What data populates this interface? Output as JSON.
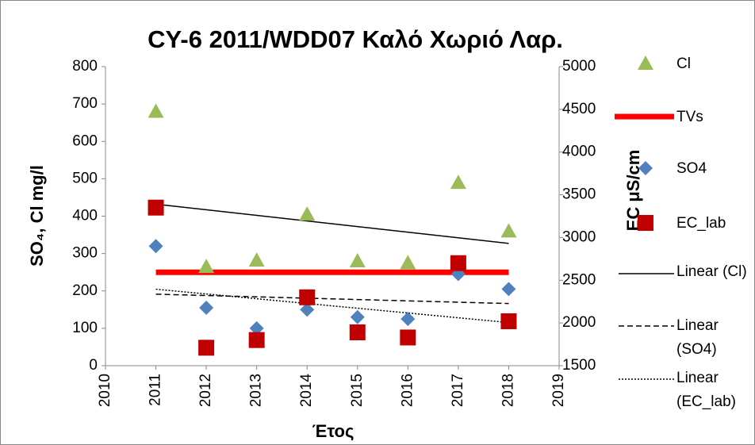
{
  "chart_data": {
    "type": "scatter",
    "title": "CY-6 2011/WDD07 Καλό Χωριό Λαρ.",
    "x_label": "Έτος",
    "y_label": "SO₄, Cl mg/l",
    "y2_label": "EC μS/cm",
    "x": [
      2011,
      2012,
      2013,
      2014,
      2015,
      2016,
      2017,
      2018
    ],
    "xlim": [
      2010,
      2019
    ],
    "xticks": [
      2010,
      2011,
      2012,
      2013,
      2014,
      2015,
      2016,
      2017,
      2018,
      2019
    ],
    "ylim": [
      0,
      800
    ],
    "yticks": [
      0,
      100,
      200,
      300,
      400,
      500,
      600,
      700,
      800
    ],
    "y2lim": [
      1500,
      5000
    ],
    "y2ticks": [
      1500,
      2000,
      2500,
      3000,
      3500,
      4000,
      4500,
      5000
    ],
    "grid": false,
    "legend": "right",
    "series": [
      {
        "name": "Cl",
        "color": "#9bbb59",
        "marker": "triangle",
        "axis": "y",
        "values": [
          680,
          265,
          282,
          405,
          280,
          275,
          490,
          360
        ]
      },
      {
        "name": "TVs",
        "color": "#ff0000",
        "marker": "line",
        "axis": "y",
        "values": [
          250,
          250,
          250,
          250,
          250,
          250,
          250,
          250
        ]
      },
      {
        "name": "SO4",
        "color": "#4f81bd",
        "marker": "diamond",
        "axis": "y",
        "values": [
          320,
          155,
          100,
          150,
          130,
          125,
          245,
          205
        ]
      },
      {
        "name": "EC_lab",
        "color": "#c00000",
        "marker": "square",
        "axis": "y2",
        "values": [
          3350,
          1710,
          1800,
          2300,
          1890,
          1830,
          2700,
          2020
        ]
      }
    ],
    "trendlines": [
      {
        "name": "Linear (Cl)",
        "series": 0,
        "color": "#000000",
        "dash": "solid"
      },
      {
        "name": "Linear (SO4)",
        "series": 2,
        "color": "#000000",
        "dash": "dashed"
      },
      {
        "name": "Linear (EC_lab)",
        "series": 3,
        "color": "#000000",
        "dash": "dotted"
      }
    ]
  }
}
